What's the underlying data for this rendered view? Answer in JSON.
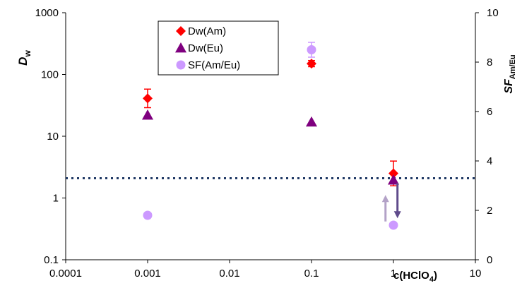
{
  "chart_data": {
    "type": "scatter",
    "title": "",
    "x_axis": {
      "scale": "log",
      "range": [
        0.0001,
        10
      ],
      "ticks": [
        0.0001,
        0.001,
        0.01,
        0.1,
        1,
        10
      ],
      "tick_labels": [
        "0.0001",
        "0.001",
        "0.01",
        "0.1",
        "1",
        "10"
      ],
      "label_main": "c(HClO",
      "label_sub": "4",
      "label_end": ")"
    },
    "y_left": {
      "scale": "log",
      "range": [
        0.1,
        1000
      ],
      "ticks": [
        0.1,
        1,
        10,
        100,
        1000
      ],
      "tick_labels": [
        "0.1",
        "1",
        "10",
        "100",
        "1000"
      ],
      "label_main": "D",
      "label_sub": "w"
    },
    "y_right": {
      "scale": "linear",
      "range": [
        0,
        10
      ],
      "ticks": [
        0,
        2,
        4,
        6,
        8,
        10
      ],
      "tick_labels": [
        "0",
        "2",
        "4",
        "6",
        "8",
        "10"
      ],
      "label_main": "SF",
      "label_sub": "Am/Eu"
    },
    "series": [
      {
        "name": "Dw(Am)",
        "axis": "left",
        "marker": "diamond",
        "color": "#ff0000",
        "points": [
          {
            "x": 0.001,
            "y": 41
          },
          {
            "x": 0.1,
            "y": 150
          },
          {
            "x": 1,
            "y": 2.5
          }
        ],
        "errors": [
          0.15,
          0.05,
          0.2
        ]
      },
      {
        "name": "Dw(Eu)",
        "axis": "left",
        "marker": "triangle",
        "color": "#7f007f",
        "points": [
          {
            "x": 0.001,
            "y": 22
          },
          {
            "x": 0.1,
            "y": 17
          },
          {
            "x": 1,
            "y": 1.95
          }
        ]
      },
      {
        "name": "SF(Am/Eu)",
        "axis": "right",
        "marker": "circle",
        "color": "#cc99ff",
        "points": [
          {
            "x": 0.001,
            "y": 1.8
          },
          {
            "x": 0.1,
            "y": 8.5
          },
          {
            "x": 1,
            "y": 1.4
          }
        ],
        "errors": [
          0.05,
          0.3,
          0.05
        ]
      }
    ],
    "reference_line": {
      "axis": "right",
      "y": 3.3,
      "style": "dotted",
      "color": "#1f3864"
    },
    "annotations": [
      {
        "type": "arrow-up",
        "x": 0.8,
        "y_from": 1.55,
        "y_to": 2.45,
        "color": "#b3a2c7"
      },
      {
        "type": "arrow-down",
        "x": 1.12,
        "y_from": 3.1,
        "y_to": 1.85,
        "color": "#5f4b8b"
      }
    ],
    "legend": {
      "position": "top-center-left",
      "entries": [
        "Dw(Am)",
        "Dw(Eu)",
        "SF(Am/Eu)"
      ]
    },
    "grid": false
  }
}
